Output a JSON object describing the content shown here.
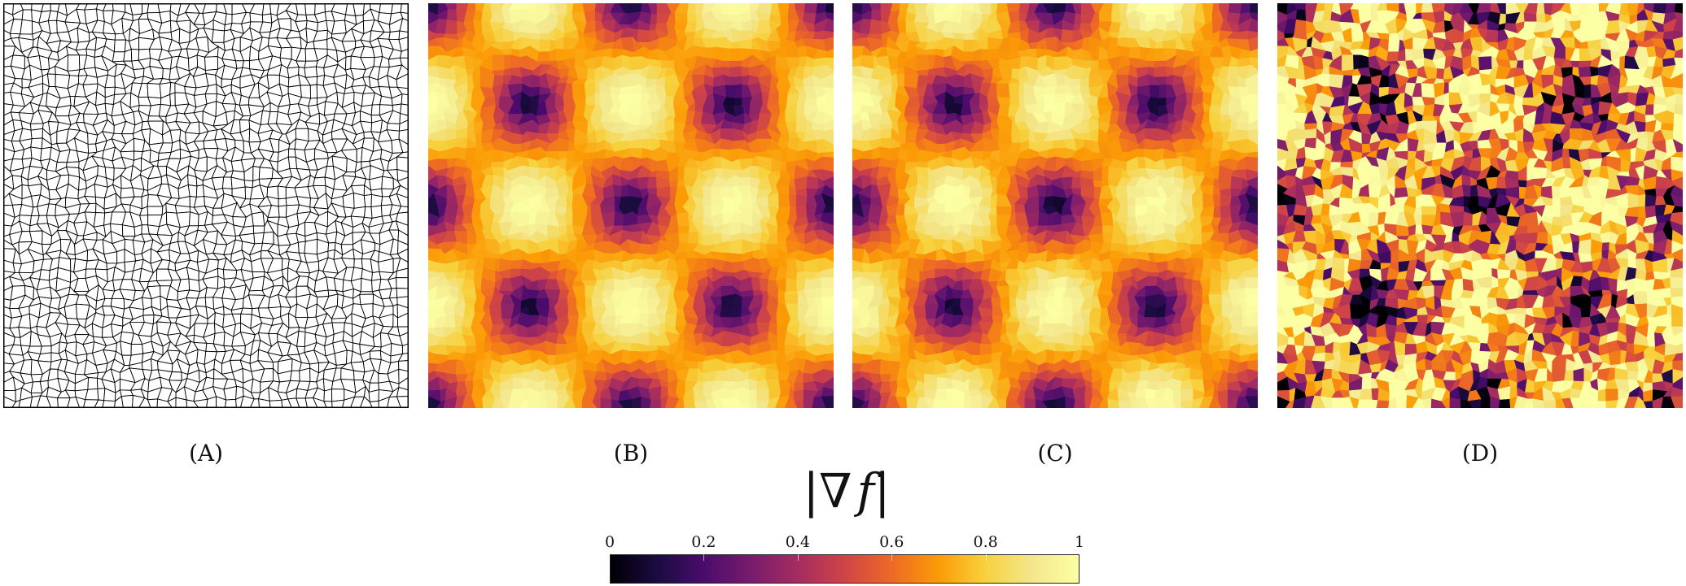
{
  "panels": [
    {
      "id": "A",
      "label": "(A)",
      "kind": "mesh"
    },
    {
      "id": "B",
      "label": "(B)",
      "kind": "smooth-field"
    },
    {
      "id": "C",
      "label": "(C)",
      "kind": "smooth-field"
    },
    {
      "id": "D",
      "label": "(D)",
      "kind": "noisy-field"
    }
  ],
  "colorbar": {
    "title_bar_left": "|",
    "title_nabla": "∇",
    "title_var": "f",
    "title_bar_right": "|",
    "ticks": [
      "0",
      "0.2",
      "0.4",
      "0.6",
      "0.8",
      "1"
    ],
    "tick_values": [
      0,
      0.2,
      0.4,
      0.6,
      0.8,
      1
    ],
    "range": [
      0,
      1
    ],
    "colormap": "inferno"
  },
  "colors": {
    "mesh_fill": "#ffffff",
    "mesh_stroke": "#000000",
    "colormap_stops": [
      "#000004",
      "#1b0c41",
      "#4a0c6b",
      "#781c6d",
      "#a52c60",
      "#cf4446",
      "#ed6925",
      "#fb9b06",
      "#f7d13d",
      "#f3e68c",
      "#fcffa4"
    ]
  }
}
